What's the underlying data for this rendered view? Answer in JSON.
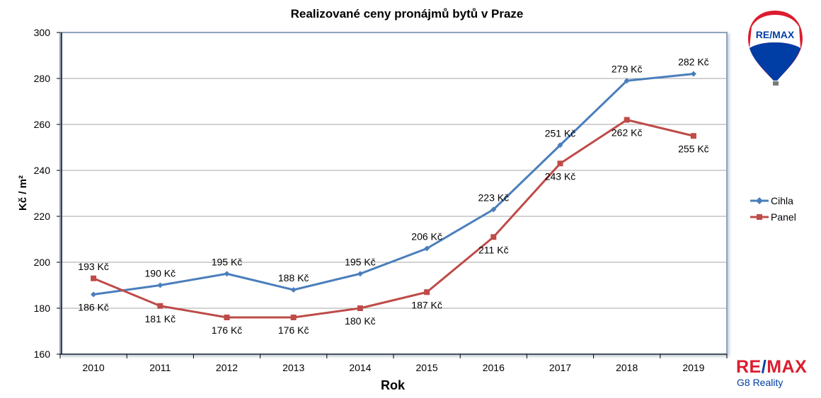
{
  "chart_data": {
    "type": "line",
    "title": "Realizované ceny pronájmů bytů v Praze",
    "xlabel": "Rok",
    "ylabel": "Kč / m²",
    "categories": [
      "2010",
      "2011",
      "2012",
      "2013",
      "2014",
      "2015",
      "2016",
      "2017",
      "2018",
      "2019"
    ],
    "ylim": [
      160,
      300
    ],
    "yticks": [
      160,
      180,
      200,
      220,
      240,
      260,
      280,
      300
    ],
    "grid": true,
    "legend_position": "right",
    "series": [
      {
        "name": "Cihla",
        "color": "#4a7ebb",
        "marker": "diamond",
        "values": [
          186,
          190,
          195,
          188,
          195,
          206,
          223,
          251,
          279,
          282
        ],
        "labels": [
          "186 Kč",
          "190 Kč",
          "195 Kč",
          "188 Kč",
          "195 Kč",
          "206 Kč",
          "223 Kč",
          "251 Kč",
          "279 Kč",
          "282 Kč"
        ]
      },
      {
        "name": "Panel",
        "color": "#be4b48",
        "marker": "square",
        "values": [
          193,
          181,
          176,
          176,
          180,
          187,
          211,
          243,
          262,
          255
        ],
        "labels": [
          "193 Kč",
          "181 Kč",
          "176 Kč",
          "176 Kč",
          "180 Kč",
          "187 Kč",
          "211 Kč",
          "243 Kč",
          "262 Kč",
          "255 Kč"
        ]
      }
    ]
  },
  "branding": {
    "balloon_text": "RE/MAX",
    "logo_re": "RE",
    "logo_slash": "/",
    "logo_max": "MAX",
    "tagline": "G8 Reality",
    "red": "#dc1c2e",
    "blue": "#003da5"
  }
}
